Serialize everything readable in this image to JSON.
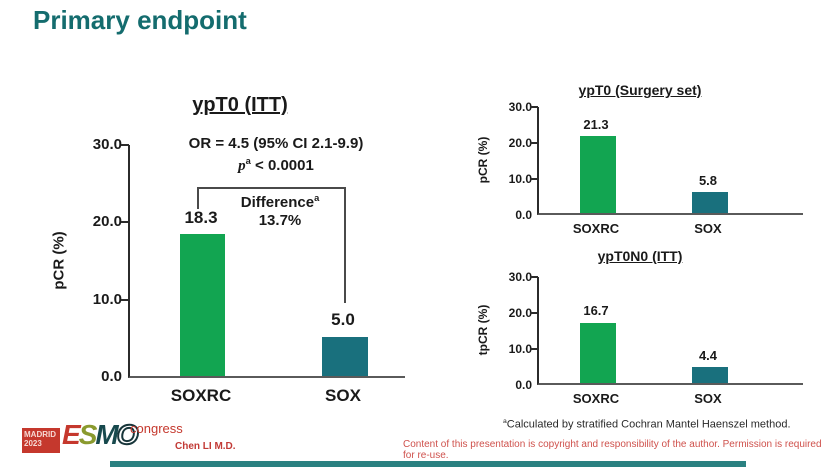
{
  "slide": {
    "title": "Primary endpoint",
    "footnote_sup": "a",
    "footnote_text": "Calculated by stratified Cochran Mantel Haenszel method.",
    "presenter": "Chen LI M.D.",
    "copyright": "Content of this presentation is copyright and responsibility of the author. Permission is required for re-use."
  },
  "logo": {
    "location": "MADRID",
    "year": "2023",
    "letters": [
      "E",
      "S",
      "M",
      "O"
    ],
    "suffix": "congress"
  },
  "colors": {
    "title_teal": "#146c6e",
    "bar_soxrc_green": "#12a551",
    "bar_sox_teal": "#19707d",
    "accent_red": "#c5382d",
    "footer_bar_teal": "#2a8181"
  },
  "chart_data": [
    {
      "type": "bar",
      "title": "ypT0 (ITT)",
      "ylabel": "pCR (%)",
      "categories": [
        "SOXRC",
        "SOX"
      ],
      "values": [
        18.3,
        5.0
      ],
      "value_labels": [
        "18.3",
        "5.0"
      ],
      "yticks": [
        "30.0",
        "20.0",
        "10.0",
        "0.0"
      ],
      "ylim": [
        0,
        30
      ],
      "grid": false,
      "annotations": {
        "or_line": "OR = 4.5 (95% CI 2.1-9.9)",
        "p_italic": "p",
        "p_sup": "a",
        "p_rest": " < 0.0001",
        "diff_label": "Difference",
        "diff_sup": "a",
        "diff_value": "13.7%"
      }
    },
    {
      "type": "bar",
      "title": "ypT0 (Surgery set)",
      "ylabel": "pCR (%)",
      "categories": [
        "SOXRC",
        "SOX"
      ],
      "values": [
        21.3,
        5.8
      ],
      "value_labels": [
        "21.3",
        "5.8"
      ],
      "yticks": [
        "30.0",
        "20.0",
        "10.0",
        "0.0"
      ],
      "ylim": [
        0,
        30
      ],
      "grid": false
    },
    {
      "type": "bar",
      "title": "ypT0N0 (ITT)",
      "ylabel": "tpCR (%)",
      "categories": [
        "SOXRC",
        "SOX"
      ],
      "values": [
        16.7,
        4.4
      ],
      "value_labels": [
        "16.7",
        "4.4"
      ],
      "yticks": [
        "30.0",
        "20.0",
        "10.0",
        "0.0"
      ],
      "ylim": [
        0,
        30
      ],
      "grid": false
    }
  ]
}
